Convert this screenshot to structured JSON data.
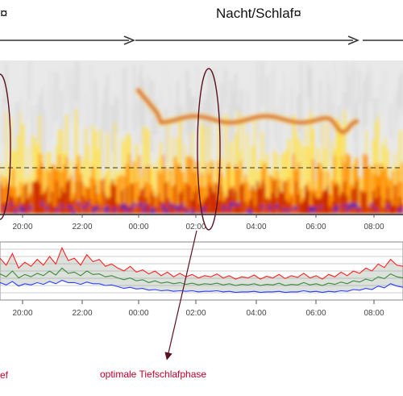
{
  "header": {
    "left_label": "¤",
    "title": "Nacht/Schlaf¤"
  },
  "annotations": {
    "left": "ef",
    "right": "optimale Tiefschlafphase"
  },
  "colors": {
    "grid_background": "#e6e6e6",
    "heat_yellow": "#ffe14a",
    "heat_orange": "#ff8a00",
    "heat_red": "#c81e00",
    "heat_blue": "#2b2bd6",
    "series_upper": "#ff2020",
    "series_mean": "#3a8a3a",
    "series_lower": "#2b3cff",
    "annotation": "#c0002a",
    "marker": "#5a1020"
  },
  "chart_data": [
    {
      "type": "heatmap",
      "x_ticks": [
        "20:00",
        "22:00",
        "00:00",
        "02:00",
        "04:00",
        "06:00",
        "08:00"
      ],
      "threshold_line": "dashed",
      "grid": false
    },
    {
      "type": "line",
      "x_ticks": [
        "20:00",
        "22:00",
        "00:00",
        "02:00",
        "04:00",
        "06:00",
        "08:00"
      ],
      "grid": true,
      "series": [
        {
          "values": [
            0.72,
            0.6,
            0.8,
            0.55,
            0.65,
            0.58,
            0.7,
            0.6,
            0.75,
            0.62,
            0.9,
            0.68,
            0.72,
            0.6,
            0.78,
            0.66,
            0.7,
            0.58,
            0.62,
            0.55,
            0.5,
            0.58,
            0.48,
            0.52,
            0.45,
            0.5,
            0.42,
            0.48,
            0.4,
            0.46,
            0.4,
            0.44,
            0.38,
            0.42,
            0.4,
            0.45,
            0.38,
            0.42,
            0.36,
            0.4,
            0.38,
            0.43,
            0.36,
            0.41,
            0.38,
            0.44,
            0.37,
            0.42,
            0.39,
            0.46,
            0.38,
            0.42,
            0.36,
            0.44,
            0.4,
            0.48,
            0.42,
            0.5,
            0.46,
            0.55,
            0.5,
            0.62,
            0.56,
            0.7,
            0.6,
            0.58
          ]
        },
        {
          "values": [
            0.45,
            0.4,
            0.5,
            0.38,
            0.44,
            0.4,
            0.46,
            0.42,
            0.5,
            0.43,
            0.55,
            0.46,
            0.48,
            0.42,
            0.5,
            0.44,
            0.45,
            0.4,
            0.42,
            0.38,
            0.35,
            0.38,
            0.33,
            0.35,
            0.3,
            0.33,
            0.29,
            0.31,
            0.28,
            0.3,
            0.27,
            0.29,
            0.26,
            0.28,
            0.27,
            0.29,
            0.26,
            0.28,
            0.25,
            0.27,
            0.26,
            0.28,
            0.25,
            0.27,
            0.26,
            0.29,
            0.25,
            0.27,
            0.26,
            0.3,
            0.26,
            0.28,
            0.25,
            0.29,
            0.27,
            0.31,
            0.28,
            0.33,
            0.31,
            0.36,
            0.33,
            0.4,
            0.37,
            0.45,
            0.4,
            0.38
          ]
        },
        {
          "values": [
            0.3,
            0.26,
            0.32,
            0.24,
            0.28,
            0.26,
            0.3,
            0.27,
            0.32,
            0.28,
            0.34,
            0.3,
            0.3,
            0.27,
            0.31,
            0.28,
            0.28,
            0.25,
            0.26,
            0.23,
            0.2,
            0.22,
            0.19,
            0.2,
            0.17,
            0.18,
            0.16,
            0.17,
            0.15,
            0.16,
            0.15,
            0.16,
            0.14,
            0.15,
            0.15,
            0.16,
            0.14,
            0.15,
            0.13,
            0.14,
            0.14,
            0.15,
            0.13,
            0.14,
            0.14,
            0.15,
            0.13,
            0.14,
            0.14,
            0.16,
            0.14,
            0.15,
            0.13,
            0.15,
            0.14,
            0.16,
            0.15,
            0.18,
            0.17,
            0.2,
            0.18,
            0.24,
            0.21,
            0.28,
            0.24,
            0.22
          ]
        }
      ]
    }
  ]
}
